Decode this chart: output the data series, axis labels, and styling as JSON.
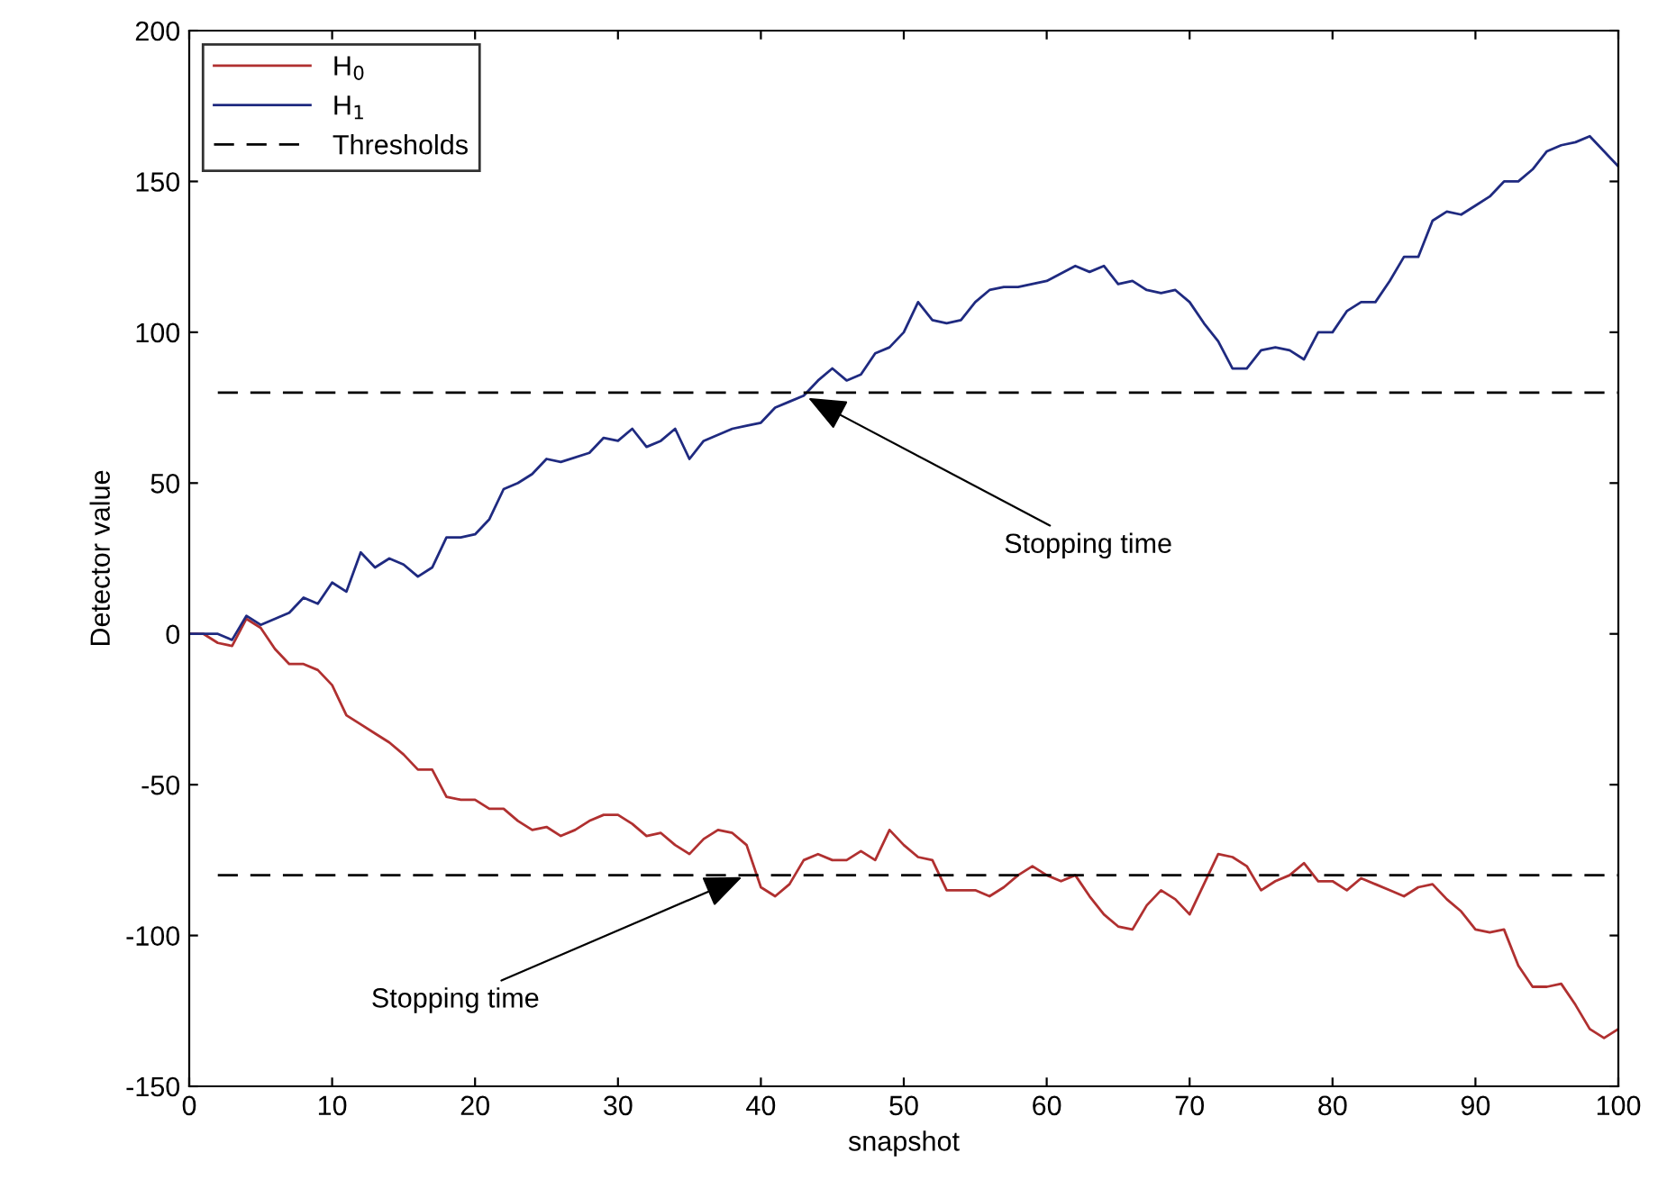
{
  "chart_data": {
    "type": "line",
    "xlabel": "snapshot",
    "ylabel": "Detector value",
    "xlim": [
      0,
      100
    ],
    "ylim": [
      -150,
      200
    ],
    "xticks": [
      0,
      10,
      20,
      30,
      40,
      50,
      60,
      70,
      80,
      90,
      100
    ],
    "yticks": [
      -150,
      -100,
      -50,
      0,
      50,
      100,
      150,
      200
    ],
    "grid": false,
    "legend": "top left",
    "line_style": "solid",
    "marker": "none",
    "series": [
      {
        "name": "H$_{0}$",
        "color": "#b03030",
        "x": [
          0,
          1,
          2,
          3,
          4,
          5,
          6,
          7,
          8,
          9,
          10,
          11,
          12,
          13,
          14,
          15,
          16,
          17,
          18,
          19,
          20,
          21,
          22,
          23,
          24,
          25,
          26,
          27,
          28,
          29,
          30,
          31,
          32,
          33,
          34,
          35,
          36,
          37,
          38,
          39,
          40,
          41,
          42,
          43,
          44,
          45,
          46,
          47,
          48,
          49,
          50,
          51,
          52,
          53,
          54,
          55,
          56,
          57,
          58,
          59,
          60,
          61,
          62,
          63,
          64,
          65,
          66,
          67,
          68,
          69,
          70,
          71,
          72,
          73,
          74,
          75,
          76,
          77,
          78,
          79,
          80,
          81,
          82,
          83,
          84,
          85,
          86,
          87,
          88,
          89,
          90,
          91,
          92,
          93,
          94,
          95,
          96,
          97,
          98,
          99,
          100
        ],
        "values": [
          0,
          0,
          -3,
          -4,
          5,
          2,
          -5,
          -10,
          -10,
          -12,
          -17,
          -27,
          -30,
          -33,
          -36,
          -40,
          -45,
          -45,
          -54,
          -55,
          -55,
          -58,
          -58,
          -62,
          -65,
          -64,
          -67,
          -65,
          -62,
          -60,
          -60,
          -63,
          -67,
          -66,
          -70,
          -73,
          -68,
          -65,
          -66,
          -70,
          -84,
          -87,
          -83,
          -75,
          -73,
          -75,
          -75,
          -72,
          -75,
          -65,
          -70,
          -74,
          -75,
          -85,
          -85,
          -85,
          -87,
          -84,
          -80,
          -77,
          -80,
          -82,
          -80,
          -87,
          -93,
          -97,
          -98,
          -90,
          -85,
          -88,
          -93,
          -83,
          -73,
          -74,
          -77,
          -85,
          -82,
          -80,
          -76,
          -82,
          -82,
          -85,
          -81,
          -83,
          -85,
          -87,
          -84,
          -83,
          -88,
          -92,
          -98,
          -99,
          -98,
          -110,
          -117,
          -117,
          -116,
          -123,
          -131,
          -134,
          -131
        ]
      },
      {
        "name": "H$_{1}$",
        "color": "#1f2a80",
        "x": [
          0,
          2,
          3,
          4,
          5,
          7,
          8,
          9,
          10,
          11,
          12,
          13,
          14,
          15,
          16,
          17,
          18,
          19,
          20,
          21,
          22,
          23,
          24,
          25,
          26,
          28,
          29,
          30,
          31,
          32,
          33,
          34,
          35,
          36,
          38,
          39,
          40,
          41,
          42,
          43,
          44,
          45,
          46,
          47,
          48,
          49,
          50,
          51,
          52,
          53,
          54,
          55,
          56,
          57,
          58,
          60,
          62,
          63,
          64,
          65,
          66,
          67,
          68,
          69,
          70,
          71,
          72,
          73,
          74,
          75,
          76,
          77,
          78,
          79,
          80,
          81,
          82,
          83,
          84,
          85,
          86,
          87,
          88,
          89,
          90,
          91,
          92,
          93,
          94,
          95,
          96,
          97,
          98,
          99,
          100
        ],
        "values": [
          0,
          0,
          -2,
          6,
          3,
          7,
          12,
          10,
          17,
          14,
          27,
          22,
          25,
          23,
          19,
          22,
          32,
          32,
          33,
          38,
          48,
          50,
          53,
          58,
          57,
          60,
          65,
          64,
          68,
          62,
          64,
          68,
          58,
          64,
          68,
          69,
          70,
          75,
          77,
          79,
          84,
          88,
          84,
          86,
          93,
          95,
          100,
          110,
          104,
          103,
          104,
          110,
          114,
          115,
          115,
          117,
          122,
          120,
          122,
          116,
          117,
          114,
          113,
          114,
          110,
          103,
          97,
          88,
          88,
          94,
          95,
          94,
          91,
          100,
          100,
          107,
          110,
          110,
          117,
          125,
          125,
          137,
          140,
          139,
          142,
          145,
          150,
          150,
          154,
          160,
          162,
          163,
          165,
          160,
          155
        ]
      }
    ],
    "ref_lines": [
      {
        "axis": "y",
        "value": 80,
        "label": "Thresholds",
        "color": "#000000",
        "line_style": "dashed"
      },
      {
        "axis": "y",
        "value": -80,
        "color": "#000000",
        "line_style": "dashed"
      }
    ],
    "annotations": [
      {
        "text": "Stopping time",
        "x": 43,
        "y": 79
      },
      {
        "text": "Stopping time",
        "x": 39,
        "y": -80
      }
    ]
  }
}
